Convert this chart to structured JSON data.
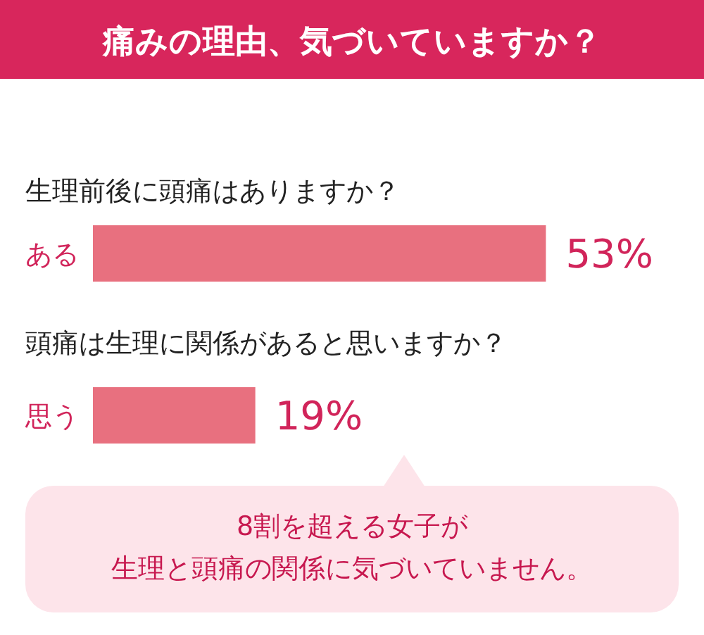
{
  "chart_data": [
    {
      "type": "bar",
      "orientation": "horizontal",
      "title": "痛みの理由、気づいていますか？",
      "subtitle": "生理前後に頭痛はありますか？",
      "categories": [
        "ある"
      ],
      "series": [
        {
          "color": "#e8707f",
          "values": [
            53
          ],
          "value_labels": [
            "53%"
          ]
        }
      ],
      "tick_labels": "y"
    },
    {
      "type": "bar",
      "orientation": "horizontal",
      "title": "頭痛は生理に関係があると思いますか？",
      "categories": [
        "思う"
      ],
      "series": [
        {
          "color": "#e8707f",
          "values": [
            19
          ],
          "value_labels": [
            "19%"
          ]
        }
      ],
      "tick_labels": "y",
      "annotations": [
        "8割を超える女子が",
        "生理と頭痛の関係に気づいていません。"
      ]
    }
  ]
}
